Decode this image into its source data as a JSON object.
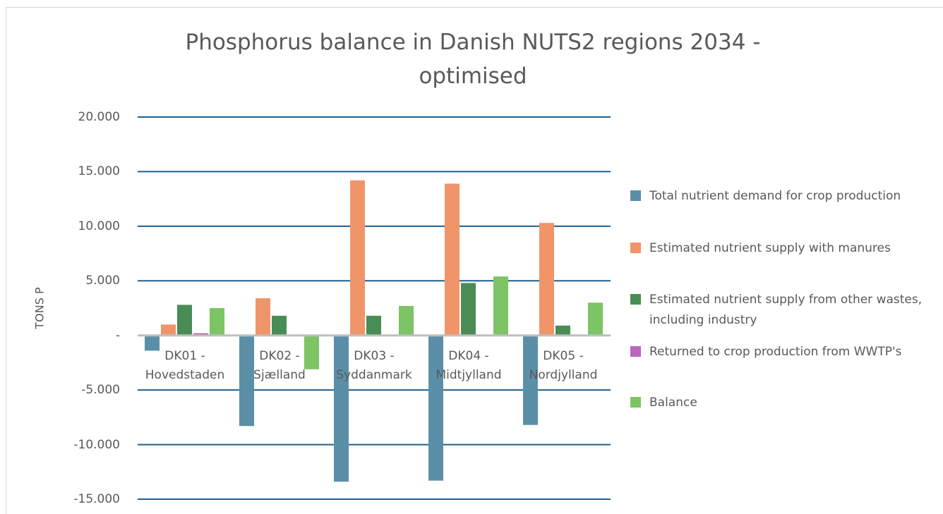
{
  "chart_data": {
    "type": "bar",
    "title": "Phosphorus balance in Danish NUTS2 regions 2034 - optimised",
    "y_label": "TONS P",
    "categories": [
      "DK01 - Hovedstaden",
      "DK02 - Sjælland",
      "DK03 - Syddanmark",
      "DK04 - Midtjylland",
      "DK05 - Nordjylland"
    ],
    "series": [
      {
        "name": "Total nutrient demand for crop production",
        "color": "#5b8fa8",
        "values": [
          -1400,
          -8300,
          -13400,
          -13300,
          -8200
        ]
      },
      {
        "name": "Estimated nutrient supply with manures",
        "color": "#f0956a",
        "values": [
          1000,
          3400,
          14200,
          13900,
          10300
        ]
      },
      {
        "name": "Estimated nutrient supply from other wastes, including industry",
        "color": "#4a8c55",
        "values": [
          2800,
          1800,
          1800,
          4800,
          900
        ]
      },
      {
        "name": "Returned to crop production from WWTP's",
        "color": "#b866c0",
        "values": [
          200,
          0,
          0,
          0,
          0
        ]
      },
      {
        "name": "Balance",
        "color": "#7cc464",
        "values": [
          2500,
          -3100,
          2700,
          5400,
          3000
        ]
      }
    ],
    "ylim": [
      -15000,
      20000
    ],
    "yticks": [
      {
        "value": -15000,
        "label": "-15.000"
      },
      {
        "value": -10000,
        "label": "-10.000"
      },
      {
        "value": -5000,
        "label": "-5.000"
      },
      {
        "value": 0,
        "label": "-"
      },
      {
        "value": 5000,
        "label": "5.000"
      },
      {
        "value": 10000,
        "label": "10.000"
      },
      {
        "value": 15000,
        "label": "15.000"
      },
      {
        "value": 20000,
        "label": "20.000"
      }
    ],
    "grid": true,
    "legend": "right"
  }
}
